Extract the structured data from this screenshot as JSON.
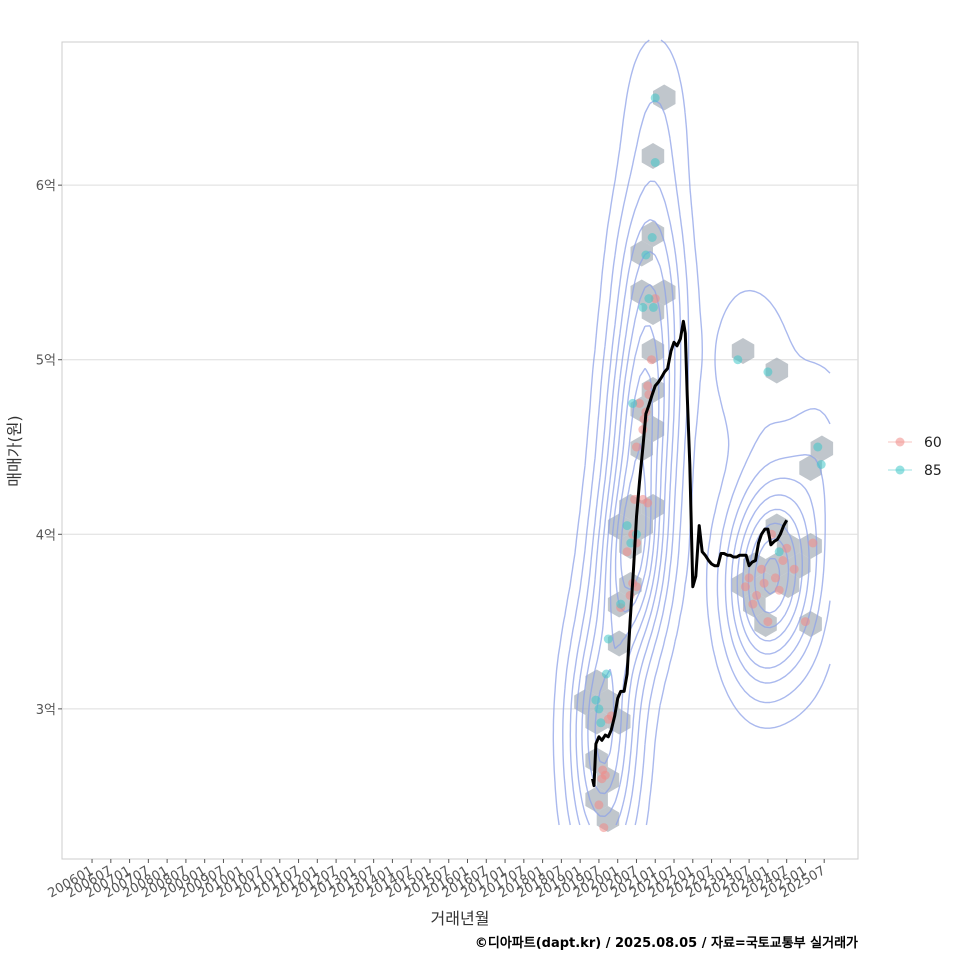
{
  "chart_data": {
    "type": "scatter",
    "xlabel": "거래년월",
    "ylabel": "매매가(원)",
    "caption": "©디아파트(dapt.kr) / 2025.08.05 / 자료=국토교통부 실거래가",
    "x_ticks": [
      "200601",
      "200607",
      "200701",
      "200707",
      "200801",
      "200807",
      "200901",
      "200907",
      "201001",
      "201007",
      "201101",
      "201107",
      "201201",
      "201207",
      "201301",
      "201307",
      "201401",
      "201407",
      "201501",
      "201507",
      "201601",
      "201607",
      "201701",
      "201707",
      "201801",
      "201807",
      "201901",
      "201907",
      "202001",
      "202007",
      "202101",
      "202107",
      "202201",
      "202207",
      "202301",
      "202307",
      "202401",
      "202407",
      "202501",
      "202507"
    ],
    "x_range": [
      2005.2,
      2026.4
    ],
    "y_ticks": [
      {
        "value": 3.0,
        "label": "3억"
      },
      {
        "value": 4.0,
        "label": "4억"
      },
      {
        "value": 5.0,
        "label": "5억"
      },
      {
        "value": 6.0,
        "label": "6억"
      }
    ],
    "ylim": [
      2.14,
      6.82
    ],
    "colors": {
      "s60": "#f08a86",
      "s85": "#3fc7c9",
      "hex": "#9aa3ad",
      "contour": "#8ea1e8",
      "line": "#000000",
      "grid": "#dedede",
      "frame": "#cccccc"
    },
    "legend": [
      {
        "name": "60",
        "color": "#f08a86"
      },
      {
        "name": "85",
        "color": "#3fc7c9"
      }
    ],
    "series": [
      {
        "name": "60",
        "points": [
          [
            2019.5,
            2.45
          ],
          [
            2019.58,
            2.6
          ],
          [
            2019.6,
            2.65
          ],
          [
            2019.67,
            2.62
          ],
          [
            2019.63,
            2.32
          ],
          [
            2019.75,
            2.94
          ],
          [
            2019.83,
            2.96
          ],
          [
            2020.08,
            3.58
          ],
          [
            2020.33,
            3.65
          ],
          [
            2020.4,
            3.72
          ],
          [
            2020.5,
            3.7
          ],
          [
            2020.25,
            3.9
          ],
          [
            2020.4,
            4.0
          ],
          [
            2020.5,
            3.95
          ],
          [
            2020.45,
            4.2
          ],
          [
            2020.67,
            4.2
          ],
          [
            2020.8,
            4.18
          ],
          [
            2020.5,
            4.5
          ],
          [
            2020.58,
            4.75
          ],
          [
            2020.67,
            4.6
          ],
          [
            2020.75,
            4.7
          ],
          [
            2020.7,
            4.66
          ],
          [
            2020.8,
            4.85
          ],
          [
            2020.83,
            4.8
          ],
          [
            2020.9,
            5.0
          ],
          [
            2021.0,
            5.35
          ],
          [
            2023.4,
            3.7
          ],
          [
            2023.5,
            3.75
          ],
          [
            2023.6,
            3.6
          ],
          [
            2023.7,
            3.65
          ],
          [
            2023.83,
            3.8
          ],
          [
            2023.9,
            3.72
          ],
          [
            2024.0,
            3.5
          ],
          [
            2024.1,
            4.0
          ],
          [
            2024.2,
            3.75
          ],
          [
            2024.3,
            3.68
          ],
          [
            2024.4,
            3.85
          ],
          [
            2024.5,
            3.92
          ],
          [
            2024.7,
            3.8
          ],
          [
            2025.0,
            3.5
          ],
          [
            2025.2,
            3.95
          ]
        ]
      },
      {
        "name": "85",
        "points": [
          [
            2019.42,
            3.05
          ],
          [
            2019.5,
            3.0
          ],
          [
            2019.55,
            2.92
          ],
          [
            2019.7,
            3.2
          ],
          [
            2019.75,
            3.4
          ],
          [
            2020.08,
            3.6
          ],
          [
            2020.25,
            4.05
          ],
          [
            2020.35,
            3.95
          ],
          [
            2020.4,
            4.75
          ],
          [
            2020.5,
            4.0
          ],
          [
            2020.67,
            5.3
          ],
          [
            2020.75,
            5.6
          ],
          [
            2020.83,
            5.35
          ],
          [
            2020.92,
            5.7
          ],
          [
            2020.95,
            5.3
          ],
          [
            2021.0,
            6.13
          ],
          [
            2021.0,
            6.5
          ],
          [
            2023.2,
            5.0
          ],
          [
            2024.0,
            4.93
          ],
          [
            2025.33,
            4.5
          ],
          [
            2025.42,
            4.4
          ],
          [
            2024.3,
            3.9
          ]
        ]
      }
    ],
    "trend_line": [
      [
        2019.33,
        2.6
      ],
      [
        2019.37,
        2.56
      ],
      [
        2019.42,
        2.8
      ],
      [
        2019.5,
        2.84
      ],
      [
        2019.58,
        2.82
      ],
      [
        2019.67,
        2.85
      ],
      [
        2019.75,
        2.84
      ],
      [
        2019.83,
        2.88
      ],
      [
        2019.92,
        2.96
      ],
      [
        2020.0,
        3.06
      ],
      [
        2020.08,
        3.1
      ],
      [
        2020.17,
        3.1
      ],
      [
        2020.25,
        3.2
      ],
      [
        2020.33,
        3.5
      ],
      [
        2020.42,
        3.8
      ],
      [
        2020.5,
        4.1
      ],
      [
        2020.58,
        4.3
      ],
      [
        2020.67,
        4.5
      ],
      [
        2020.75,
        4.69
      ],
      [
        2020.83,
        4.74
      ],
      [
        2020.92,
        4.8
      ],
      [
        2021.0,
        4.85
      ],
      [
        2021.08,
        4.87
      ],
      [
        2021.17,
        4.9
      ],
      [
        2021.25,
        4.93
      ],
      [
        2021.33,
        4.95
      ],
      [
        2021.42,
        5.05
      ],
      [
        2021.5,
        5.1
      ],
      [
        2021.58,
        5.08
      ],
      [
        2021.67,
        5.12
      ],
      [
        2021.75,
        5.22
      ],
      [
        2021.8,
        5.15
      ],
      [
        2021.85,
        4.8
      ],
      [
        2021.92,
        4.4
      ],
      [
        2022.0,
        3.7
      ],
      [
        2022.08,
        3.76
      ],
      [
        2022.17,
        4.05
      ],
      [
        2022.25,
        3.9
      ],
      [
        2022.33,
        3.88
      ],
      [
        2022.42,
        3.85
      ],
      [
        2022.5,
        3.83
      ],
      [
        2022.58,
        3.82
      ],
      [
        2022.67,
        3.82
      ],
      [
        2022.75,
        3.89
      ],
      [
        2022.83,
        3.89
      ],
      [
        2022.92,
        3.88
      ],
      [
        2023.0,
        3.88
      ],
      [
        2023.08,
        3.87
      ],
      [
        2023.17,
        3.87
      ],
      [
        2023.25,
        3.88
      ],
      [
        2023.33,
        3.88
      ],
      [
        2023.42,
        3.88
      ],
      [
        2023.5,
        3.82
      ],
      [
        2023.58,
        3.84
      ],
      [
        2023.67,
        3.85
      ],
      [
        2023.75,
        3.95
      ],
      [
        2023.83,
        4.0
      ],
      [
        2023.92,
        4.03
      ],
      [
        2024.0,
        4.03
      ],
      [
        2024.08,
        3.94
      ],
      [
        2024.17,
        3.96
      ],
      [
        2024.25,
        3.97
      ],
      [
        2024.33,
        4.0
      ],
      [
        2024.42,
        4.05
      ],
      [
        2024.5,
        4.08
      ]
    ]
  }
}
